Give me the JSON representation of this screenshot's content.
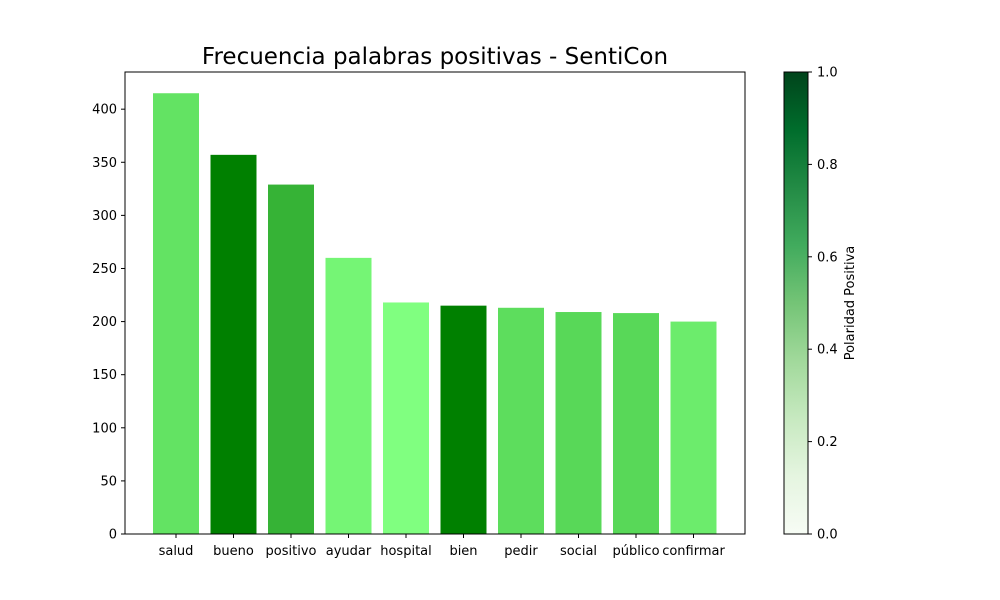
{
  "chart_data": {
    "type": "bar",
    "title": "Frecuencia palabras positivas - SentiCon",
    "xlabel": "",
    "ylabel": "",
    "categories": [
      "salud",
      "bueno",
      "positivo",
      "ayudar",
      "hospital",
      "bien",
      "pedir",
      "social",
      "público",
      "confirmar"
    ],
    "values": [
      415,
      357,
      329,
      260,
      218,
      215,
      213,
      209,
      208,
      200
    ],
    "bar_colors": [
      "#63e363",
      "#008000",
      "#36b336",
      "#75f575",
      "#80ff80",
      "#008000",
      "#5ddd5d",
      "#58d858",
      "#58d858",
      "#6cec6c"
    ],
    "ylim": [
      0,
      435
    ],
    "yticks": [
      0,
      50,
      100,
      150,
      200,
      250,
      300,
      350,
      400
    ],
    "grid": false,
    "colorbar": {
      "label": "Polaridad  Positiva",
      "range": [
        0.0,
        1.0
      ],
      "ticks": [
        "0.0",
        "0.2",
        "0.4",
        "0.6",
        "0.8",
        "1.0"
      ],
      "colormap": [
        "#f7fcf5",
        "#e5f5e0",
        "#c7e9c0",
        "#a1d99b",
        "#74c476",
        "#41ab5d",
        "#238b45",
        "#006d2c",
        "#00441b"
      ]
    }
  }
}
